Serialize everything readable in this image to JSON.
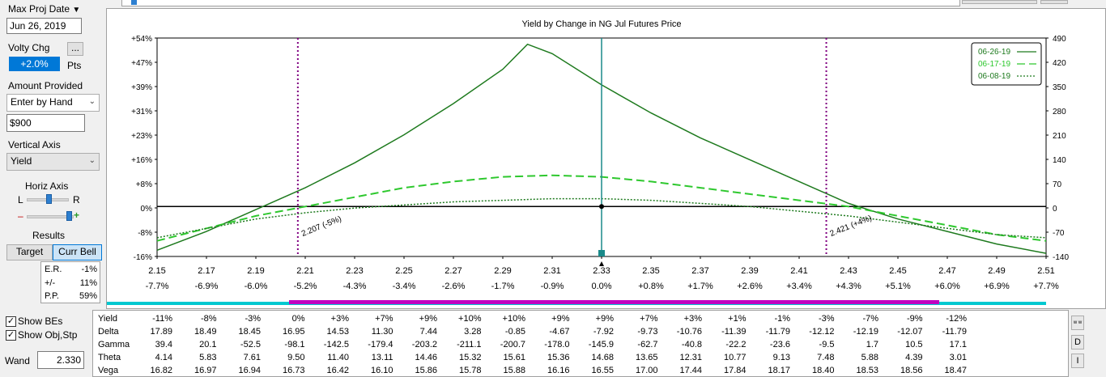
{
  "sidebar": {
    "max_proj_date_label": "Max Proj Date",
    "max_proj_date_value": "Jun 26, 2019",
    "volty_chg_label": "Volty Chg",
    "volty_chg_more": "...",
    "volty_chg_value": "+2.0%",
    "volty_chg_unit": "Pts",
    "amount_provided_label": "Amount Provided",
    "amount_mode": "Enter by Hand",
    "amount_value": "$900",
    "vertical_axis_label": "Vertical Axis",
    "vertical_axis_value": "Yield",
    "horiz_axis_label": "Horiz Axis",
    "slider_left": "L",
    "slider_right": "R",
    "zoom_minus": "–",
    "zoom_plus": "+",
    "results_label": "Results",
    "target_label": "Target",
    "curr_bell_label": "Curr Bell",
    "stats": [
      {
        "label": "E.R.",
        "value": "-1%"
      },
      {
        "label": "+/-",
        "value": "11%"
      },
      {
        "label": "P.P.",
        "value": "59%"
      }
    ],
    "show_bes_label": "Show BEs",
    "show_obj_label": "Show Obj,Stp",
    "wand_label": "Wand",
    "wand_value": "2.330"
  },
  "chart_data": {
    "type": "line",
    "title": "Yield by Change in NG Jul Futures Price",
    "x_ticks": [
      "2.15",
      "2.17",
      "2.19",
      "2.21",
      "2.23",
      "2.25",
      "2.27",
      "2.29",
      "2.31",
      "2.33",
      "2.35",
      "2.37",
      "2.39",
      "2.41",
      "2.43",
      "2.45",
      "2.47",
      "2.49",
      "2.51"
    ],
    "x_pct_ticks": [
      "-7.7%",
      "-6.9%",
      "-6.0%",
      "-5.2%",
      "-4.3%",
      "-3.4%",
      "-2.6%",
      "-1.7%",
      "-0.9%",
      "0.0%",
      "+0.8%",
      "+1.7%",
      "+2.6%",
      "+3.4%",
      "+4.3%",
      "+5.1%",
      "+6.0%",
      "+6.9%",
      "+7.7%"
    ],
    "y_left_ticks": [
      "+54%",
      "+47%",
      "+39%",
      "+31%",
      "+23%",
      "+16%",
      "+8%",
      "0%",
      "-8%",
      "-16%"
    ],
    "y_right_ticks": [
      "490",
      "420",
      "350",
      "280",
      "210",
      "140",
      "70",
      "0",
      "-70",
      "-140"
    ],
    "xlim": [
      2.15,
      2.51
    ],
    "ylim": [
      -16,
      54
    ],
    "current_price": 2.33,
    "breakevens": [
      {
        "x": 2.207,
        "label": "2.207 (-5%)"
      },
      {
        "x": 2.421,
        "label": "2.421 (+4%)"
      }
    ],
    "legend_position": "top-right",
    "series": [
      {
        "name": "06-26-19",
        "style": "solid",
        "color": "#1e7a1e",
        "x": [
          2.15,
          2.17,
          2.19,
          2.21,
          2.23,
          2.25,
          2.27,
          2.29,
          2.3,
          2.31,
          2.33,
          2.35,
          2.37,
          2.39,
          2.41,
          2.43,
          2.45,
          2.47,
          2.49,
          2.51
        ],
        "y": [
          -14,
          -8,
          -1,
          6,
          14,
          23,
          33,
          44,
          52,
          49,
          39,
          30,
          22,
          15,
          8,
          1,
          -4,
          -8,
          -12,
          -15
        ]
      },
      {
        "name": "06-17-19",
        "style": "dashed",
        "color": "#2ec82e",
        "x": [
          2.15,
          2.17,
          2.19,
          2.21,
          2.23,
          2.25,
          2.27,
          2.29,
          2.31,
          2.33,
          2.35,
          2.37,
          2.39,
          2.41,
          2.43,
          2.45,
          2.47,
          2.49,
          2.51
        ],
        "y": [
          -11,
          -7,
          -3,
          0,
          3,
          6,
          8,
          9.5,
          10,
          9.5,
          8,
          6,
          4,
          2,
          0,
          -3,
          -6,
          -9,
          -11
        ]
      },
      {
        "name": "06-08-19",
        "style": "dotted",
        "color": "#1e7a1e",
        "x": [
          2.15,
          2.17,
          2.19,
          2.21,
          2.23,
          2.25,
          2.27,
          2.29,
          2.31,
          2.33,
          2.35,
          2.37,
          2.39,
          2.41,
          2.43,
          2.45,
          2.47,
          2.49,
          2.51
        ],
        "y": [
          -10,
          -7,
          -4,
          -2,
          -0.5,
          0.5,
          1.5,
          2,
          2.5,
          2.5,
          2,
          1,
          0,
          -1.5,
          -3,
          -5,
          -7,
          -9,
          -10
        ]
      }
    ]
  },
  "greeks": {
    "rows": [
      {
        "name": "Yield",
        "values": [
          "-11%",
          "-8%",
          "-3%",
          "0%",
          "+3%",
          "+7%",
          "+9%",
          "+10%",
          "+10%",
          "+9%",
          "+9%",
          "+7%",
          "+3%",
          "+1%",
          "-1%",
          "-3%",
          "-7%",
          "-9%",
          "-12%"
        ]
      },
      {
        "name": "Delta",
        "values": [
          "17.89",
          "18.49",
          "18.45",
          "16.95",
          "14.53",
          "11.30",
          "7.44",
          "3.28",
          "-0.85",
          "-4.67",
          "-7.92",
          "-9.73",
          "-10.76",
          "-11.39",
          "-11.79",
          "-12.12",
          "-12.19",
          "-12.07",
          "-11.79"
        ]
      },
      {
        "name": "Gamma",
        "values": [
          "39.4",
          "20.1",
          "-52.5",
          "-98.1",
          "-142.5",
          "-179.4",
          "-203.2",
          "-211.1",
          "-200.7",
          "-178.0",
          "-145.9",
          "-62.7",
          "-40.8",
          "-22.2",
          "-23.6",
          "-9.5",
          "1.7",
          "10.5",
          "17.1"
        ]
      },
      {
        "name": "Theta",
        "values": [
          "4.14",
          "5.83",
          "7.61",
          "9.50",
          "11.40",
          "13.11",
          "14.46",
          "15.32",
          "15.61",
          "15.36",
          "14.68",
          "13.65",
          "12.31",
          "10.77",
          "9.13",
          "7.48",
          "5.88",
          "4.39",
          "3.01"
        ]
      },
      {
        "name": "Vega",
        "values": [
          "16.82",
          "16.97",
          "16.94",
          "16.73",
          "16.42",
          "16.10",
          "15.86",
          "15.78",
          "15.88",
          "16.16",
          "16.55",
          "17.00",
          "17.44",
          "17.84",
          "18.17",
          "18.40",
          "18.53",
          "18.56",
          "18.47"
        ]
      }
    ],
    "side_buttons": [
      "w w",
      "D",
      "I"
    ]
  },
  "colors": {
    "accent": "#0078d7",
    "cyan_bar": "#00c8d0",
    "magenta_bar": "#c000c0",
    "breakeven_line": "#800080",
    "wand_line": "#1a8a8a"
  }
}
